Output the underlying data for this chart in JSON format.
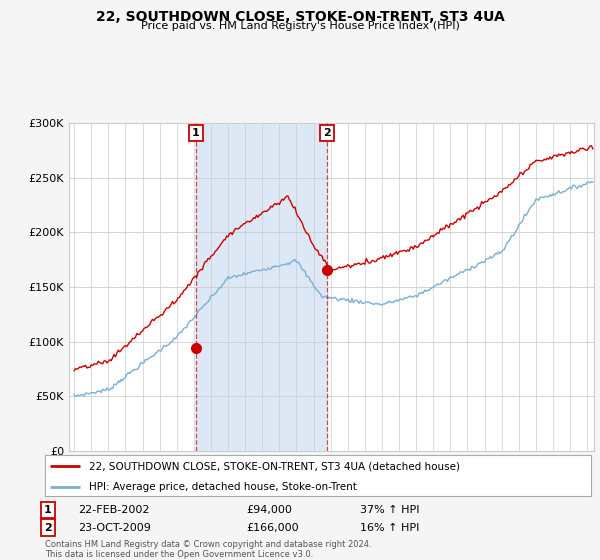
{
  "title": "22, SOUTHDOWN CLOSE, STOKE-ON-TRENT, ST3 4UA",
  "subtitle": "Price paid vs. HM Land Registry's House Price Index (HPI)",
  "legend_line1": "22, SOUTHDOWN CLOSE, STOKE-ON-TRENT, ST3 4UA (detached house)",
  "legend_line2": "HPI: Average price, detached house, Stoke-on-Trent",
  "annotation1_date": "22-FEB-2002",
  "annotation1_price": "£94,000",
  "annotation1_hpi": "37% ↑ HPI",
  "annotation2_date": "23-OCT-2009",
  "annotation2_price": "£166,000",
  "annotation2_hpi": "16% ↑ HPI",
  "footer": "Contains HM Land Registry data © Crown copyright and database right 2024.\nThis data is licensed under the Open Government Licence v3.0.",
  "price_color": "#cc0000",
  "hpi_color": "#7ab0d4",
  "shade_color": "#dce8f5",
  "ylim": [
    0,
    300000
  ],
  "yticks": [
    0,
    50000,
    100000,
    150000,
    200000,
    250000,
    300000
  ],
  "sale1_year": 2002.12,
  "sale1_price": 94000,
  "sale2_year": 2009.79,
  "sale2_price": 166000,
  "xstart": 1995,
  "xend": 2025
}
